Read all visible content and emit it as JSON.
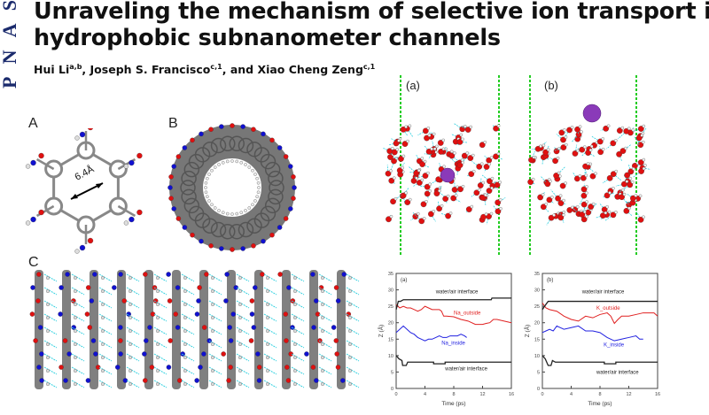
{
  "journal_logo": "PNAS",
  "title_line1": "Unraveling the mechanism of selective ion transport in",
  "title_line2": "hydrophobic subnanometer channels",
  "authors": [
    {
      "name": "Hui Li",
      "sup": "a,b",
      "sep": ", "
    },
    {
      "name": "Joseph S. Francisco",
      "sup": "c,1",
      "sep": ", and "
    },
    {
      "name": "Xiao Cheng Zeng",
      "sup": "c,1",
      "sep": ""
    }
  ],
  "panels": {
    "A": {
      "label": "A",
      "annotation": "6.4Å"
    },
    "B": {
      "label": "B"
    },
    "C": {
      "label": "C"
    },
    "a": {
      "label": "(a)"
    },
    "b": {
      "label": "(b)"
    }
  },
  "colors": {
    "logo": "#1a2a6c",
    "oxygen": "#e01010",
    "nitrogen": "#1010d0",
    "carbon": "#8a8a8a",
    "hbond": "#30d0e0",
    "ion": "#8a3ab9",
    "boundary": "#22cc22"
  },
  "chart_data": [
    {
      "type": "line",
      "panel_label": "(a)",
      "xlabel": "Time (ps)",
      "ylabel": "Z (Å)",
      "xlim": [
        0,
        16
      ],
      "ylim": [
        0,
        35
      ],
      "xticks": [
        0,
        4,
        8,
        12,
        16
      ],
      "yticks": [
        0,
        5,
        10,
        15,
        20,
        25,
        30,
        35
      ],
      "annotations": [
        {
          "text": "water/air interface",
          "near_series": "top"
        },
        {
          "text": "water/air interface",
          "near_series": "bottom"
        }
      ],
      "series": [
        {
          "name": "Na_outside",
          "color": "#e02020",
          "x": [
            0,
            0.5,
            1,
            1.5,
            2,
            2.5,
            3,
            3.5,
            4,
            4.5,
            5,
            5.5,
            6,
            6.3,
            6.6,
            7,
            8,
            9,
            10,
            11,
            12,
            12.5,
            13,
            13.5,
            14,
            15,
            16
          ],
          "y": [
            25.5,
            24.5,
            25,
            24.5,
            24.5,
            24,
            23.5,
            24,
            25,
            24.5,
            24,
            24,
            24,
            23.5,
            22,
            22,
            21.8,
            21,
            20.5,
            19.5,
            19.5,
            19.8,
            20,
            21,
            21,
            20.5,
            20
          ]
        },
        {
          "name": "Na_inside",
          "color": "#2020e0",
          "x": [
            0,
            0.5,
            1,
            1.5,
            2,
            2.5,
            3,
            3.5,
            4,
            4.5,
            5,
            5.5,
            6,
            6.5,
            7,
            7.5,
            8,
            8.5,
            9,
            9.5,
            9.8
          ],
          "y": [
            17,
            18,
            19,
            18,
            17,
            16.5,
            15.5,
            15,
            14.5,
            15,
            15,
            15.5,
            16,
            15.5,
            15.5,
            16,
            16,
            16,
            16.5,
            16,
            15.5
          ]
        },
        {
          "name": "top",
          "color": "#222222",
          "x": [
            0,
            0.3,
            0.6,
            1,
            13.2,
            13.3,
            16
          ],
          "y": [
            24,
            26.5,
            26.5,
            27,
            27,
            27.5,
            27.5
          ]
        },
        {
          "name": "bottom",
          "color": "#222222",
          "x": [
            0,
            0.4,
            0.8,
            0.9,
            1.4,
            1.6,
            5.2,
            5.2,
            6.8,
            6.8,
            16
          ],
          "y": [
            10,
            9,
            8.5,
            7,
            7,
            8,
            8,
            7.5,
            7.5,
            8,
            8
          ]
        }
      ]
    },
    {
      "type": "line",
      "panel_label": "(b)",
      "xlabel": "Time (ps)",
      "ylabel": "Z (Å)",
      "xlim": [
        0,
        16
      ],
      "ylim": [
        0,
        35
      ],
      "xticks": [
        0,
        4,
        8,
        12,
        16
      ],
      "yticks": [
        0,
        5,
        10,
        15,
        20,
        25,
        30,
        35
      ],
      "annotations": [
        {
          "text": "water/air interface",
          "near_series": "top"
        },
        {
          "text": "water/air interface",
          "near_series": "bottom"
        }
      ],
      "series": [
        {
          "name": "K_outside",
          "color": "#e02020",
          "x": [
            0,
            0.5,
            1,
            2,
            3,
            4,
            5,
            6,
            7,
            8,
            9,
            9.5,
            10,
            10.5,
            11,
            12,
            13,
            14,
            15,
            15.5,
            16
          ],
          "y": [
            26,
            24.5,
            24,
            23.5,
            22,
            21,
            20.5,
            22,
            21.5,
            22.5,
            23,
            22,
            19.8,
            21,
            22,
            22,
            22.5,
            23,
            23,
            23,
            22
          ]
        },
        {
          "name": "K_inside",
          "color": "#2020e0",
          "x": [
            0,
            0.5,
            1,
            1.5,
            2,
            2.5,
            3,
            4,
            5,
            6,
            7,
            8,
            9,
            9.5,
            10,
            11,
            12,
            13,
            13.5,
            14
          ],
          "y": [
            17,
            17.5,
            18,
            17.5,
            19,
            18.5,
            18,
            18.5,
            19,
            17.5,
            17.5,
            17,
            15.5,
            15,
            14.5,
            15,
            15.5,
            16,
            15,
            15
          ]
        },
        {
          "name": "top",
          "color": "#222222",
          "x": [
            0,
            0.3,
            0.8,
            16
          ],
          "y": [
            24,
            25,
            26.5,
            26.5
          ]
        },
        {
          "name": "bottom",
          "color": "#222222",
          "x": [
            0,
            0.4,
            0.8,
            1.2,
            1.4,
            1.8,
            8.6,
            8.6,
            10.2,
            10.2,
            16
          ],
          "y": [
            10,
            9,
            7,
            7,
            8.5,
            8,
            8,
            7.5,
            7.5,
            8,
            8
          ]
        }
      ]
    }
  ]
}
